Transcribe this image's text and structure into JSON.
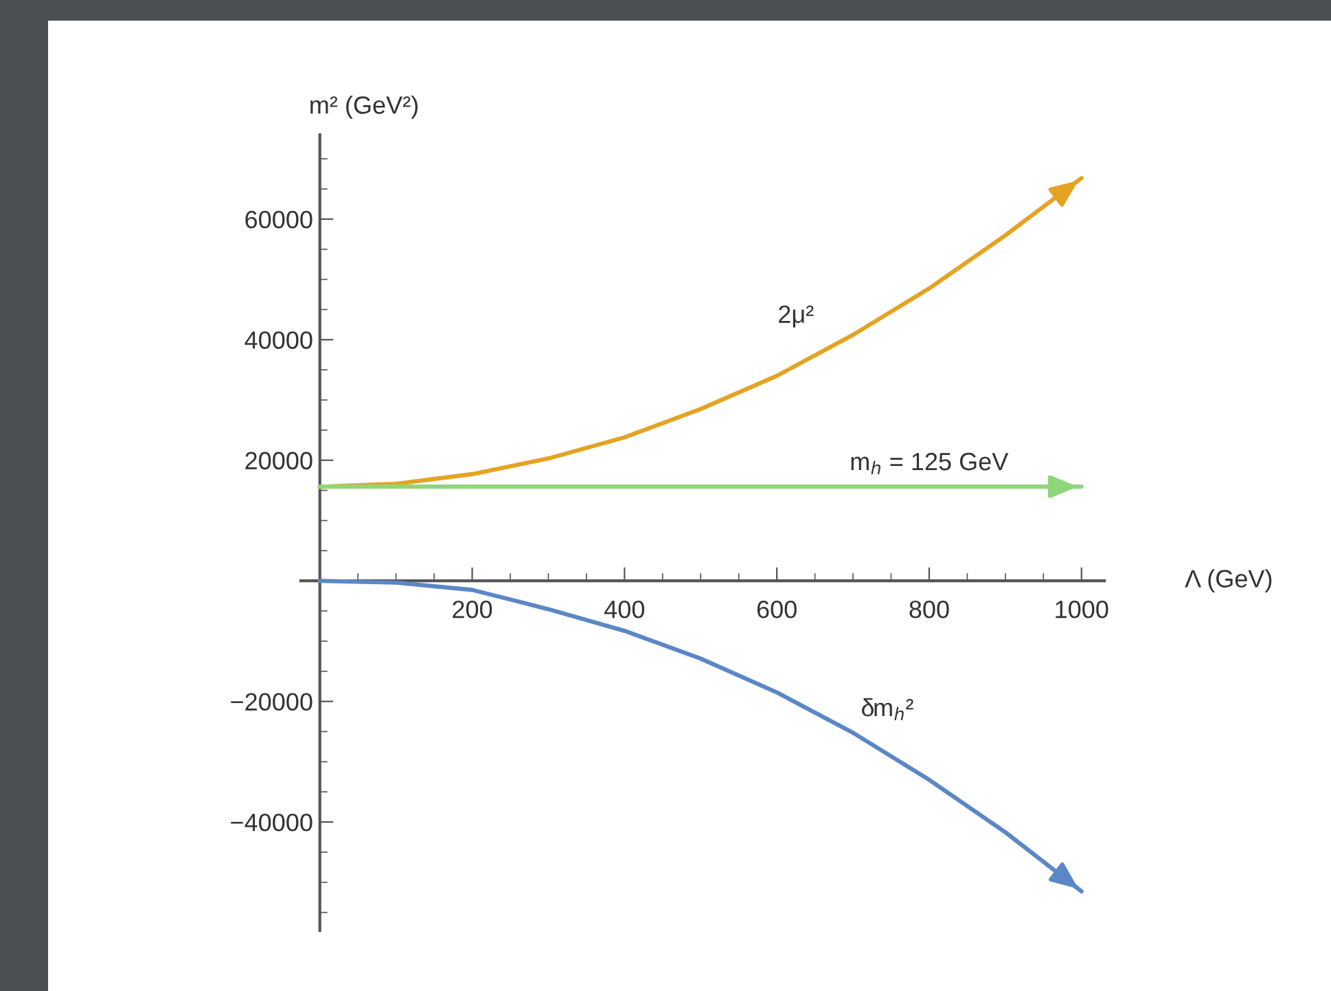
{
  "chart_data": {
    "type": "line",
    "xlabel": "Λ (GeV)",
    "ylabel": "m² (GeV²)",
    "xlim": [
      -25,
      1030
    ],
    "ylim": [
      -58000,
      74000
    ],
    "xticks": [
      200,
      400,
      600,
      800,
      1000
    ],
    "yticks": [
      {
        "value": -40000,
        "label": "−40000"
      },
      {
        "value": -20000,
        "label": "−20000"
      },
      20000,
      40000,
      60000
    ],
    "grid": false,
    "legend": false,
    "marker": "none",
    "line_style": "solid",
    "series": [
      {
        "name": "2μ²",
        "color": "#e5a323",
        "x": [
          0,
          100,
          200,
          300,
          400,
          500,
          600,
          700,
          800,
          900,
          1000
        ],
        "values": [
          15600,
          16100,
          17700,
          20300,
          23800,
          28500,
          34000,
          40800,
          48500,
          57300,
          66800
        ]
      },
      {
        "name": "m$_{h}$ = 125 GeV",
        "color": "#8fd67a",
        "x": [
          0,
          1000
        ],
        "values": [
          15625,
          15625
        ]
      },
      {
        "name": "δm$_{h}$²",
        "color": "#5b87c6",
        "x": [
          0,
          100,
          200,
          300,
          400,
          500,
          600,
          700,
          800,
          900,
          1000
        ],
        "values": [
          0,
          -300,
          -1500,
          -4700,
          -8300,
          -12900,
          -18500,
          -25200,
          -33000,
          -41700,
          -51500
        ]
      }
    ]
  }
}
